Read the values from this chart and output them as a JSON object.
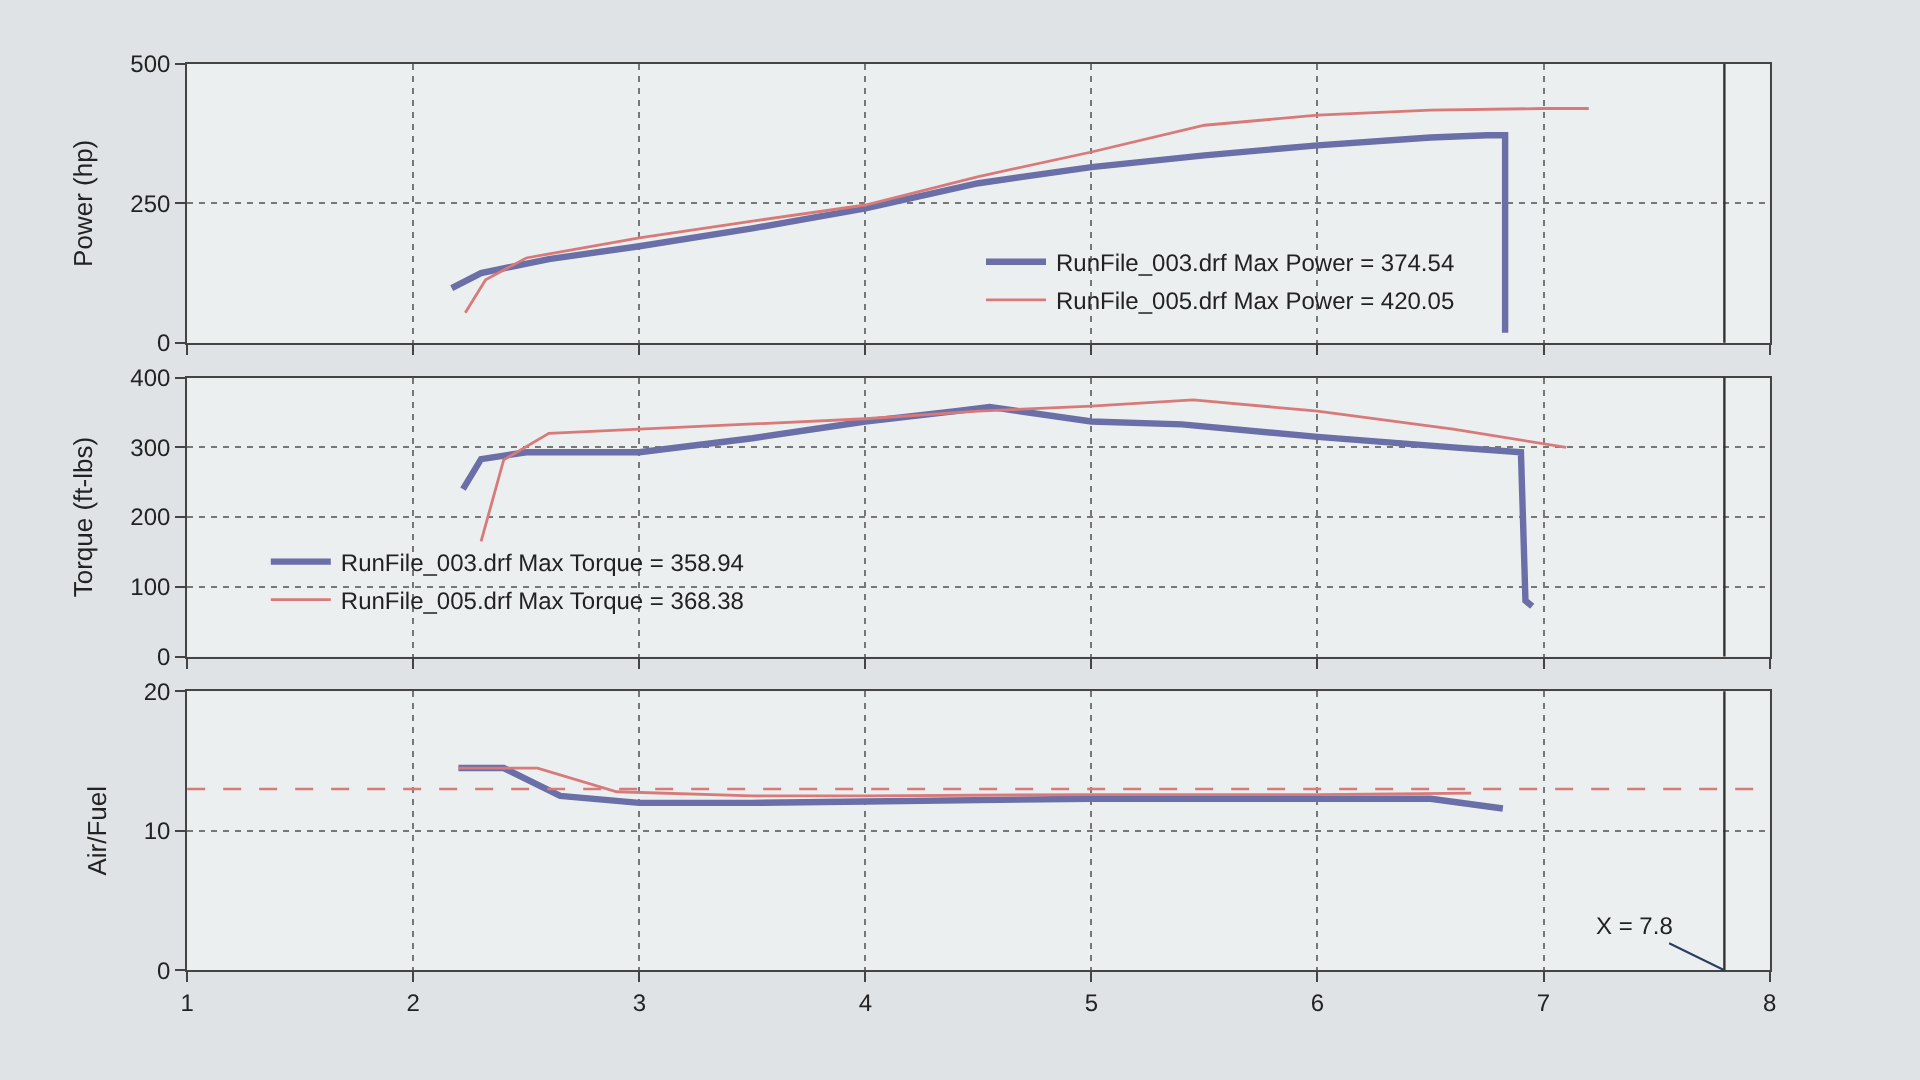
{
  "chart_data": [
    {
      "type": "line",
      "ylabel": "Power (hp)",
      "xlim": [
        1,
        8
      ],
      "xticks": [
        1,
        2,
        3,
        4,
        5,
        6,
        7,
        8
      ],
      "ylim": [
        0,
        500
      ],
      "yticks": [
        0,
        250,
        500
      ],
      "grid": true,
      "tick_labels": "y",
      "legend": "bottom right",
      "line_style": "solid",
      "ref_lines": [
        {
          "axis": "x",
          "value": 7.8,
          "color": "#333333"
        }
      ],
      "series": [
        {
          "name": "RunFile_003.drf Max Power = 374.54",
          "color": "#6a6fa8",
          "x": [
            2.17,
            2.3,
            2.6,
            3,
            3.5,
            4,
            4.5,
            5,
            5.5,
            6,
            6.5,
            6.75,
            6.83,
            6.83
          ],
          "values": [
            98,
            125,
            150,
            173,
            205,
            241,
            286,
            315,
            336,
            354,
            368,
            372,
            372,
            18
          ]
        },
        {
          "name": "RunFile_005.drf Max Power = 420.05",
          "color": "#d87a7a",
          "x": [
            2.23,
            2.32,
            2.5,
            3,
            3.5,
            4,
            4.5,
            5,
            5.5,
            6,
            6.5,
            7,
            7.2
          ],
          "values": [
            54,
            113,
            152,
            188,
            218,
            247,
            298,
            342,
            390,
            408,
            417,
            420,
            420
          ]
        }
      ]
    },
    {
      "type": "line",
      "ylabel": "Torque (ft-lbs)",
      "xlim": [
        1,
        8
      ],
      "xticks": [
        1,
        2,
        3,
        4,
        5,
        6,
        7,
        8
      ],
      "ylim": [
        0,
        400
      ],
      "yticks": [
        0,
        100,
        200,
        300,
        400
      ],
      "grid": true,
      "tick_labels": "y",
      "legend": "bottom left",
      "line_style": "solid",
      "ref_lines": [
        {
          "axis": "x",
          "value": 7.8,
          "color": "#333333"
        }
      ],
      "series": [
        {
          "name": "RunFile_003.drf Max Torque = 358.94",
          "color": "#6a6fa8",
          "x": [
            2.22,
            2.3,
            2.5,
            3,
            3.5,
            4,
            4.4,
            4.55,
            5,
            5.4,
            6,
            6.6,
            6.9,
            6.92,
            6.95
          ],
          "values": [
            240,
            283,
            293,
            293,
            313,
            337,
            352,
            358,
            337,
            333,
            315,
            300,
            293,
            80,
            72
          ]
        },
        {
          "name": "RunFile_005.drf Max Torque = 368.38",
          "color": "#d87a7a",
          "x": [
            2.3,
            2.4,
            2.6,
            3,
            4,
            4.5,
            5,
            5.45,
            6,
            6.6,
            7.1
          ],
          "values": [
            165,
            282,
            320,
            326,
            341,
            352,
            359,
            368,
            352,
            326,
            300
          ]
        }
      ]
    },
    {
      "type": "line",
      "ylabel": "Air/Fuel",
      "xlim": [
        1,
        8
      ],
      "xticks": [
        1,
        2,
        3,
        4,
        5,
        6,
        7,
        8
      ],
      "ylim": [
        0,
        20
      ],
      "yticks": [
        0,
        10,
        20
      ],
      "grid": true,
      "line_style": "solid",
      "annotations": [
        {
          "text": "X = 7.8",
          "x": 7.8,
          "y": 0
        }
      ],
      "ref_lines": [
        {
          "axis": "y",
          "value": 13,
          "color": "#d87a7a",
          "line_style": "dashed"
        },
        {
          "axis": "x",
          "value": 7.8,
          "color": "#333333"
        }
      ],
      "series": [
        {
          "color": "#6a6fa8",
          "x": [
            2.2,
            2.4,
            2.65,
            3,
            3.5,
            4,
            5,
            6,
            6.5,
            6.82
          ],
          "values": [
            14.5,
            14.5,
            12.5,
            12.0,
            12.0,
            12.1,
            12.3,
            12.3,
            12.3,
            11.6
          ]
        },
        {
          "color": "#d87a7a",
          "x": [
            2.2,
            2.55,
            2.9,
            3.5,
            4,
            5,
            6,
            6.68
          ],
          "values": [
            14.5,
            14.5,
            12.8,
            12.5,
            12.5,
            12.6,
            12.6,
            12.7
          ]
        }
      ]
    }
  ]
}
